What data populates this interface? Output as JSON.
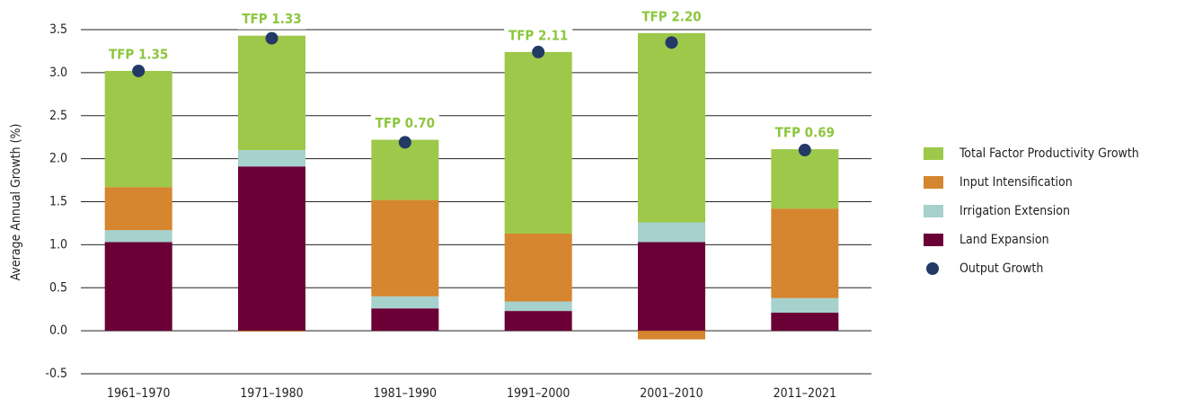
{
  "chart_data": {
    "type": "bar",
    "stacked": true,
    "y_label": "Average Annual Growth (%)",
    "categories": [
      "1961–1970",
      "1971–1980",
      "1981–1990",
      "1991–2000",
      "2001–2010",
      "2011–2021"
    ],
    "series": [
      {
        "name": "Land Expansion",
        "color": "#6b0037",
        "values": [
          1.03,
          1.91,
          0.26,
          0.23,
          1.03,
          0.21
        ]
      },
      {
        "name": "Irrigation Extension",
        "color": "#a6d1cc",
        "values": [
          0.14,
          0.19,
          0.14,
          0.11,
          0.23,
          0.17
        ]
      },
      {
        "name": "Input Intensification",
        "color": "#d5862e",
        "values": [
          0.5,
          -0.01,
          1.12,
          0.79,
          -0.1,
          1.04
        ]
      },
      {
        "name": "Total Factor Productivity Growth",
        "color": "#9dc84a",
        "values": [
          1.35,
          1.33,
          0.7,
          2.11,
          2.2,
          0.69
        ],
        "value_labels": [
          "TFP 1.35",
          "TFP 1.33",
          "TFP 0.70",
          "TFP 2.11",
          "TFP 2.20",
          "TFP 0.69"
        ]
      },
      {
        "name": "Output Growth",
        "type": "scatter",
        "color": "#233a66",
        "values": [
          3.02,
          3.4,
          2.19,
          3.24,
          3.35,
          2.1
        ]
      }
    ],
    "ylim": [
      -0.5,
      3.5
    ],
    "yticks": [
      {
        "value": -0.5,
        "label": "-0.5"
      },
      {
        "value": 0,
        "label": "0.0"
      },
      {
        "value": 0.5,
        "label": "0.5"
      },
      {
        "value": 1,
        "label": "1.0"
      },
      {
        "value": 1.5,
        "label": "1.5"
      },
      {
        "value": 2,
        "label": "2.0"
      },
      {
        "value": 2.5,
        "label": "2.5"
      },
      {
        "value": 3,
        "label": "3.0"
      },
      {
        "value": 3.5,
        "label": "3.5"
      }
    ],
    "grid": true,
    "legend": "right"
  }
}
